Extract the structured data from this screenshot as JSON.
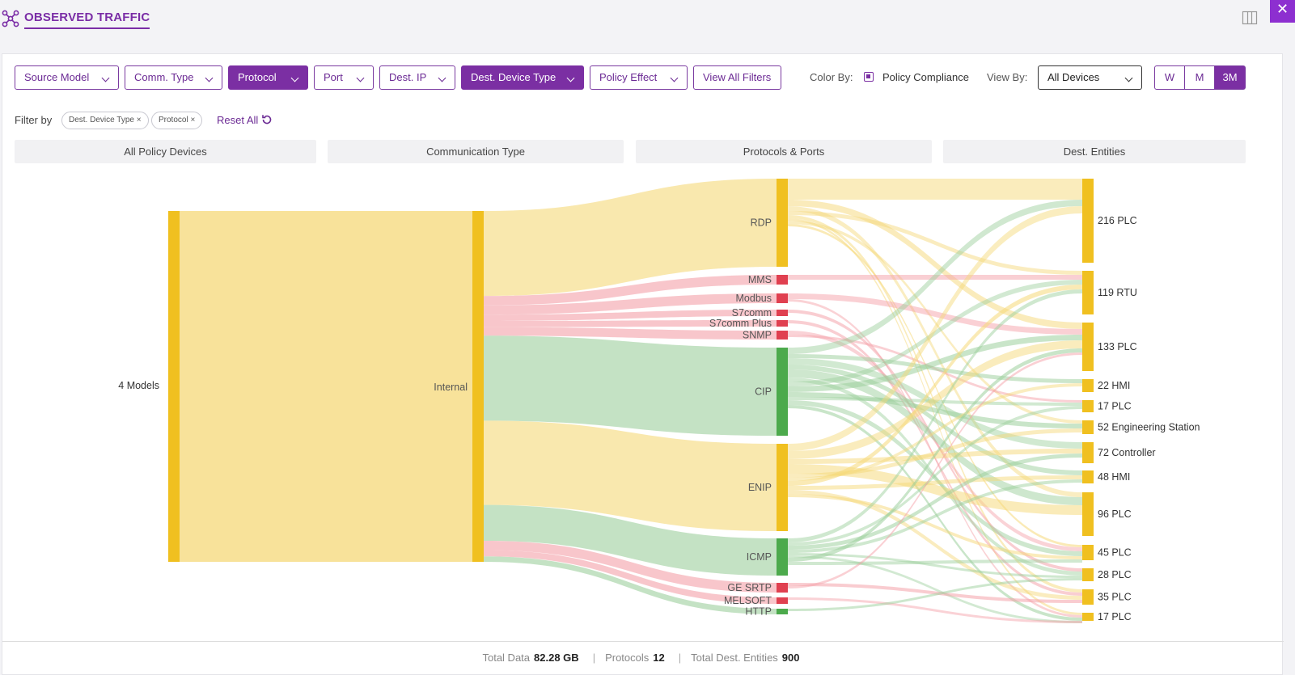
{
  "header": {
    "title": "OBSERVED TRAFFIC",
    "close_label": "✕"
  },
  "toolbar": {
    "filters": [
      {
        "label": "Source Model",
        "selected": false
      },
      {
        "label": "Comm. Type",
        "selected": false
      },
      {
        "label": "Protocol",
        "selected": true
      },
      {
        "label": "Port",
        "selected": false
      },
      {
        "label": "Dest. IP",
        "selected": false
      },
      {
        "label": "Dest. Device Type",
        "selected": true
      },
      {
        "label": "Policy Effect",
        "selected": false
      }
    ],
    "view_all_label": "View All Filters",
    "color_by_label": "Color By:",
    "policy_compliance_label": "Policy Compliance",
    "view_by_label": "View By:",
    "view_by_value": "All Devices",
    "ranges": [
      "W",
      "M",
      "3M"
    ],
    "active_range": "3M"
  },
  "filter_row": {
    "label": "Filter by",
    "chips": [
      "Dest. Device Type",
      "Protocol"
    ],
    "chip_close": "×",
    "reset_label": "Reset All"
  },
  "columns": [
    "All Policy Devices",
    "Communication Type",
    "Protocols & Ports",
    "Dest. Entities"
  ],
  "sankey": {
    "source": "4 Models",
    "comm_type": "Internal",
    "protocols": [
      {
        "name": "RDP",
        "color": "#f0c020"
      },
      {
        "name": "MMS",
        "color": "#e04050"
      },
      {
        "name": "Modbus",
        "color": "#e04050"
      },
      {
        "name": "S7comm",
        "color": "#e04050"
      },
      {
        "name": "S7comm Plus",
        "color": "#e04050"
      },
      {
        "name": "SNMP",
        "color": "#e04050"
      },
      {
        "name": "CIP",
        "color": "#4caa4c"
      },
      {
        "name": "ENIP",
        "color": "#f0c020"
      },
      {
        "name": "ICMP",
        "color": "#4caa4c"
      },
      {
        "name": "GE SRTP",
        "color": "#e04050"
      },
      {
        "name": "MELSOFT",
        "color": "#e04050"
      },
      {
        "name": "HTTP",
        "color": "#4caa4c"
      }
    ],
    "destinations": [
      "216 PLC",
      "119 RTU",
      "133 PLC",
      "22 HMI",
      "17 PLC",
      "52 Engineering Station",
      "72 Controller",
      "48 HMI",
      "96 PLC",
      "45 PLC",
      "28 PLC",
      "35 PLC",
      "17 PLC"
    ],
    "node_color": "#f0c020",
    "link_colors": {
      "yellow": "#f5d878",
      "red": "#f4a0a8",
      "green": "#9ccf9c"
    }
  },
  "footer": {
    "total_data_label": "Total Data",
    "total_data_value": "82.28 GB",
    "protocols_label": "Protocols",
    "protocols_value": "12",
    "dest_label": "Total Dest. Entities",
    "dest_value": "900",
    "sep": "|"
  }
}
